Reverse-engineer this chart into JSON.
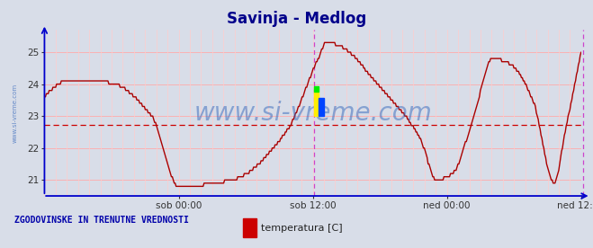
{
  "title": "Savinja - Medlog",
  "title_color": "#00008B",
  "title_fontsize": 12,
  "bg_color": "#d8dde8",
  "plot_bg_color": "#d8dde8",
  "line_color": "#aa0000",
  "line_width": 1.0,
  "watermark": "www.si-vreme.com",
  "watermark_color": "#3366bb",
  "watermark_alpha": 0.5,
  "watermark_fontsize": 20,
  "xlabel_labels": [
    "sob 00:00",
    "sob 12:00",
    "ned 00:00",
    "ned 12:00"
  ],
  "ylim": [
    20.5,
    25.7
  ],
  "yticks": [
    21,
    22,
    23,
    24,
    25
  ],
  "avg_line": 22.72,
  "avg_line_color": "#cc0000",
  "grid_color_h": "#ffaaaa",
  "grid_color_v": "#ffcccc",
  "border_color": "#0000cc",
  "magenta_vline1": 0.502,
  "magenta_vline2": 1.003,
  "magenta_color": "#cc44cc",
  "legend_label": "temperatura [C]",
  "legend_color": "#cc0000",
  "footer_text": "ZGODOVINSKE IN TRENUTNE VREDNOSTI",
  "footer_color": "#0000aa",
  "n_points": 576
}
